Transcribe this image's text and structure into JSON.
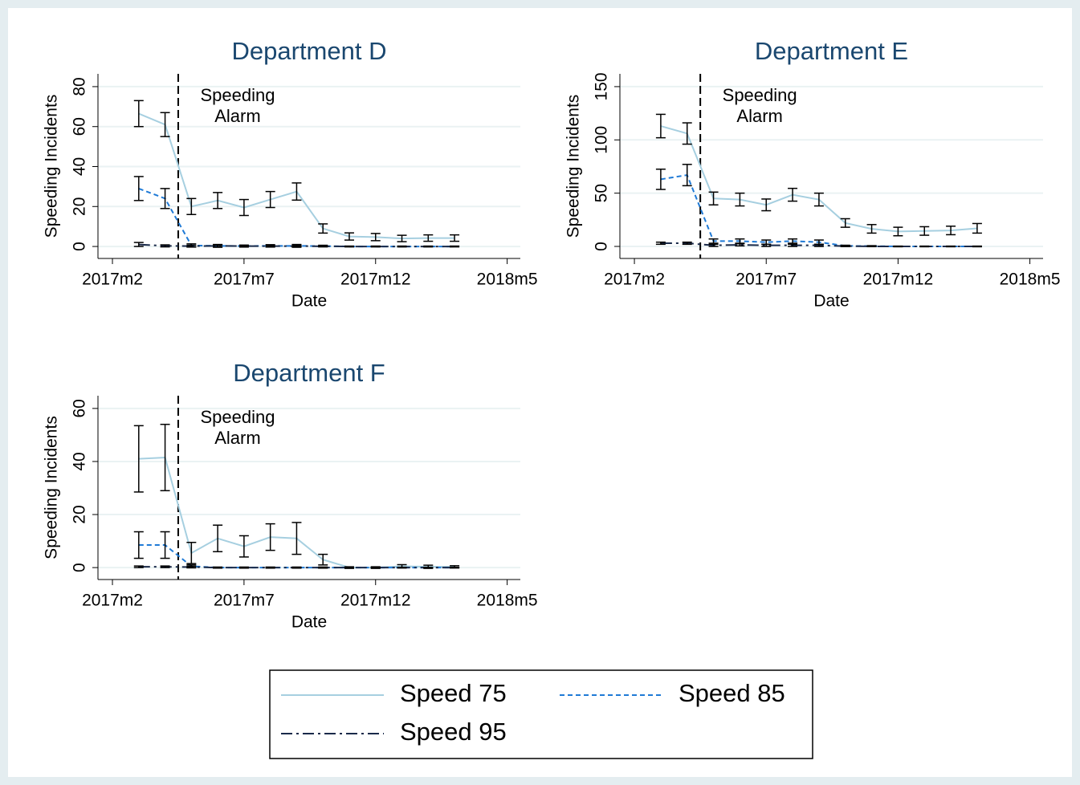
{
  "legend": {
    "position": "bottom",
    "entries": [
      {
        "name": "Speed 75",
        "color": "#a6cfe0",
        "dash": "solid"
      },
      {
        "name": "Speed 85",
        "color": "#1f7ad6",
        "dash": "dash"
      },
      {
        "name": "Speed 95",
        "color": "#1a2a4a",
        "dash": "dashdot"
      }
    ]
  },
  "chart_data": [
    {
      "type": "line",
      "title": "Department D",
      "xlabel": "Date",
      "ylabel": "Speeding Incidents",
      "x": [
        686,
        687,
        688,
        689,
        690,
        691,
        692,
        693,
        694,
        695,
        696,
        697,
        698
      ],
      "xlim": [
        684.45,
        700.5
      ],
      "xticks": [
        {
          "value": 685,
          "label": "2017m2"
        },
        {
          "value": 690,
          "label": "2017m7"
        },
        {
          "value": 695,
          "label": "2017m12"
        },
        {
          "value": 700,
          "label": "2018m5"
        }
      ],
      "ylim": [
        -6,
        86.4
      ],
      "yticks": [
        0,
        20,
        40,
        60,
        80
      ],
      "grid": true,
      "xline": 687.5,
      "annotation": [
        "Speeding",
        "Alarm"
      ],
      "series": [
        {
          "values": [
            66.5,
            61,
            20,
            23,
            19.5,
            23.5,
            27.5,
            9,
            5,
            4.7,
            4,
            4.2,
            4.2
          ],
          "errors": [
            6.5,
            6,
            4,
            4,
            4,
            4,
            4.3,
            2.3,
            1.8,
            1.8,
            1.6,
            1.6,
            1.6
          ]
        },
        {
          "values": [
            29,
            24,
            0.5,
            0.3,
            0.2,
            0.3,
            0.3,
            0.2,
            0,
            0,
            0,
            0,
            0
          ],
          "errors": [
            6,
            5,
            0.8,
            0.7,
            0.5,
            0.6,
            0.7,
            0.4,
            0.2,
            0.2,
            0.2,
            0.2,
            0.2
          ]
        },
        {
          "values": [
            1,
            0.3,
            0.2,
            0.3,
            0.2,
            0.2,
            0.2,
            0.1,
            0,
            0,
            0,
            0,
            0
          ],
          "errors": [
            1,
            0.5,
            0.4,
            0.4,
            0.3,
            0.3,
            0.3,
            0.2,
            0.1,
            0.1,
            0.1,
            0.1,
            0.1
          ]
        }
      ]
    },
    {
      "type": "line",
      "title": "Department E",
      "xlabel": "Date",
      "ylabel": "Speeding Incidents",
      "x": [
        686,
        687,
        688,
        689,
        690,
        691,
        692,
        693,
        694,
        695,
        696,
        697,
        698
      ],
      "xlim": [
        684.45,
        700.5
      ],
      "xticks": [
        {
          "value": 685,
          "label": "2017m2"
        },
        {
          "value": 690,
          "label": "2017m7"
        },
        {
          "value": 695,
          "label": "2017m12"
        },
        {
          "value": 700,
          "label": "2018m5"
        }
      ],
      "ylim": [
        -11.3,
        162
      ],
      "yticks": [
        0,
        50,
        100,
        150
      ],
      "grid": true,
      "xline": 687.5,
      "annotation": [
        "Speeding",
        "Alarm"
      ],
      "series": [
        {
          "values": [
            113,
            106,
            45,
            44,
            39,
            48.5,
            44,
            22,
            16.5,
            14,
            14.5,
            15,
            17
          ],
          "errors": [
            11,
            10,
            6,
            6,
            5.5,
            6,
            6,
            4,
            4,
            4,
            4,
            4,
            4.5
          ]
        },
        {
          "values": [
            63,
            67,
            5,
            5,
            4,
            5,
            4,
            0.5,
            0.3,
            0,
            0,
            0,
            0
          ],
          "errors": [
            9.5,
            10,
            2,
            2,
            2,
            2,
            2,
            0.6,
            0.4,
            0.3,
            0.3,
            0.3,
            0.3
          ]
        },
        {
          "values": [
            3,
            3,
            1,
            1.5,
            1,
            1,
            1,
            0.3,
            0,
            0,
            0,
            0,
            0
          ],
          "errors": [
            1,
            1,
            1,
            1,
            1,
            1,
            1,
            0.4,
            0.2,
            0.2,
            0.2,
            0.2,
            0.2
          ]
        }
      ]
    },
    {
      "type": "line",
      "title": "Department F",
      "xlabel": "Date",
      "ylabel": "Speeding Incidents",
      "x": [
        686,
        687,
        688,
        689,
        690,
        691,
        692,
        693,
        694,
        695,
        696,
        697,
        698
      ],
      "xlim": [
        684.45,
        700.5
      ],
      "xticks": [
        {
          "value": 685,
          "label": "2017m2"
        },
        {
          "value": 690,
          "label": "2017m7"
        },
        {
          "value": 695,
          "label": "2017m12"
        },
        {
          "value": 700,
          "label": "2018m5"
        }
      ],
      "ylim": [
        -4.5,
        64.8
      ],
      "yticks": [
        0,
        20,
        40,
        60
      ],
      "grid": true,
      "xline": 687.5,
      "annotation": [
        "Speeding",
        "Alarm"
      ],
      "series": [
        {
          "values": [
            41,
            41.5,
            5.5,
            11,
            8,
            11.5,
            11,
            3,
            0,
            0,
            0.5,
            0.3,
            0.3
          ],
          "errors": [
            12.5,
            12.5,
            4,
            5,
            4,
            5,
            6,
            2,
            0.3,
            0.3,
            0.6,
            0.6,
            0.4
          ]
        },
        {
          "values": [
            8.5,
            8.5,
            0.5,
            0,
            0,
            0,
            0,
            0,
            0,
            0,
            0,
            0,
            0
          ],
          "errors": [
            5,
            5,
            0.5,
            0.2,
            0.2,
            0.2,
            0.2,
            0.2,
            0.1,
            0.1,
            0.1,
            0.1,
            0.1
          ]
        },
        {
          "values": [
            0.3,
            0.3,
            0.2,
            0,
            0,
            0,
            0,
            0,
            0,
            0,
            0,
            0,
            0
          ],
          "errors": [
            0.3,
            0.3,
            0.3,
            0.1,
            0.1,
            0.1,
            0.1,
            0.1,
            0.1,
            0.1,
            0.1,
            0.1,
            0.1
          ]
        }
      ]
    }
  ]
}
